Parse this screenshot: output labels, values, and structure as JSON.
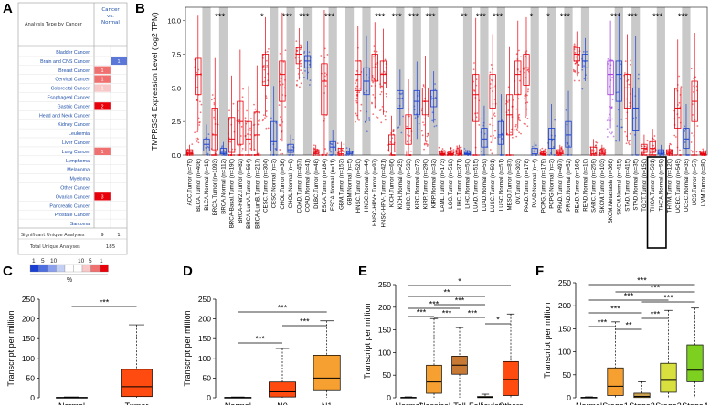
{
  "figure": {
    "panel_labels": [
      "A",
      "B",
      "C",
      "D",
      "E",
      "F"
    ]
  },
  "panelA": {
    "header_left": "Analysis Type by Cancer",
    "header_right_line1": "Cancer",
    "header_right_line2": "vs.",
    "header_right_line3": "Normal",
    "significant_label": "Significant Unique Analyses",
    "significant_values": [
      "9",
      "1"
    ],
    "total_label": "Total Unique Analyses",
    "total_value": "185",
    "legend_numbers": [
      "1",
      "5",
      "10",
      "10",
      "5",
      "1"
    ],
    "legend_unit": "%",
    "colors": {
      "up_strong": "#e8000b",
      "up_mid": "#f07070",
      "up_light": "#f8c8c8",
      "down": "#5b78d8",
      "link": "#1f4fa8"
    }
  },
  "chart_data": [
    {
      "panel": "A",
      "type": "table",
      "title": "Analysis Type by Cancer",
      "columns": [
        "Cancer vs. Normal (up)",
        "Cancer vs. Normal (down)"
      ],
      "rows": [
        {
          "cancer": "Bladder Cancer",
          "up": "",
          "down": ""
        },
        {
          "cancer": "Brain and CNS Cancer",
          "up": "",
          "down": "1"
        },
        {
          "cancer": "Breast Cancer",
          "up": "1",
          "down": ""
        },
        {
          "cancer": "Cervical Cancer",
          "up": "1",
          "down": ""
        },
        {
          "cancer": "Colorectal Cancer",
          "up": "1",
          "down": ""
        },
        {
          "cancer": "Esophageal Cancer",
          "up": "",
          "down": ""
        },
        {
          "cancer": "Gastric Cancer",
          "up": "2",
          "down": ""
        },
        {
          "cancer": "Head and Neck Cancer",
          "up": "",
          "down": ""
        },
        {
          "cancer": "Kidney Cancer",
          "up": "",
          "down": ""
        },
        {
          "cancer": "Leukemia",
          "up": "",
          "down": ""
        },
        {
          "cancer": "Liver Cancer",
          "up": "",
          "down": ""
        },
        {
          "cancer": "Lung Cancer",
          "up": "1",
          "down": ""
        },
        {
          "cancer": "Lymphoma",
          "up": "",
          "down": ""
        },
        {
          "cancer": "Melanoma",
          "up": "",
          "down": ""
        },
        {
          "cancer": "Myeloma",
          "up": "",
          "down": ""
        },
        {
          "cancer": "Other Cancer",
          "up": "",
          "down": ""
        },
        {
          "cancer": "Ovarian Cancer",
          "up": "3",
          "down": ""
        },
        {
          "cancer": "Pancreatic Cancer",
          "up": "",
          "down": ""
        },
        {
          "cancer": "Prostate Cancer",
          "up": "",
          "down": ""
        },
        {
          "cancer": "Sarcoma",
          "up": "",
          "down": ""
        }
      ],
      "cell_shade": {
        "Brain and CNS Cancer": "down",
        "Breast Cancer": "up_mid",
        "Cervical Cancer": "up_mid",
        "Colorectal Cancer": "up_light",
        "Gastric Cancer": "up_strong",
        "Lung Cancer": "up_mid",
        "Ovarian Cancer": "up_strong"
      }
    },
    {
      "panel": "B",
      "type": "box",
      "ylabel": "TMPRSS4 Expression Level (log2 TPM)",
      "ylim": [
        0,
        11
      ],
      "yticks": [
        "0.0",
        "2.5",
        "5.0",
        "7.5",
        "10.0"
      ],
      "categories": [
        "ACC.Tumor (n=79)",
        "BLCA.Tumor (n=408)",
        "BLCA.Normal (n=19)",
        "BRCA.Tumor (n=1093)",
        "BRCA.Normal (n=112)",
        "BRCA-Basal.Tumor (n=190)",
        "BRCA-Her2.Tumor (n=82)",
        "BRCA-LumA.Tumor (n=564)",
        "BRCA-LumB.Tumor (n=217)",
        "CESC.Tumor (n=304)",
        "CESC.Normal (n=3)",
        "CHOL.Tumor (n=36)",
        "CHOL.Normal (n=9)",
        "COAD.Tumor (n=457)",
        "COAD.Normal (n=41)",
        "DLBC.Tumor (n=48)",
        "ESCA.Tumor (n=184)",
        "ESCA.Normal (n=11)",
        "GBM.Tumor (n=153)",
        "GBM.Normal (n=5)",
        "HNSC.Tumor (n=520)",
        "HNSC.Normal (n=44)",
        "HNSC-HPV+.Tumor (n=97)",
        "HNSC-HPV-.Tumor (n=421)",
        "KICH.Tumor (n=66)",
        "KICH.Normal (n=25)",
        "KIRC.Tumor (n=533)",
        "KIRC.Normal (n=72)",
        "KIRP.Tumor (n=290)",
        "KIRP.Normal (n=32)",
        "LAML.Tumor (n=173)",
        "LGG.Tumor (n=516)",
        "LIHC.Tumor (n=371)",
        "LIHC.Normal (n=50)",
        "LUAD.Tumor (n=515)",
        "LUAD.Normal (n=59)",
        "LUSC.Tumor (n=501)",
        "LUSC.Normal (n=51)",
        "MESO.Tumor (n=87)",
        "OV.Tumor (n=303)",
        "PAAD.Tumor (n=178)",
        "PAAD.Normal (n=4)",
        "PCPG.Tumor (n=179)",
        "PCPG.Normal (n=3)",
        "PRAD.Tumor (n=497)",
        "PRAD.Normal (n=52)",
        "READ.Tumor (n=166)",
        "READ.Normal (n=10)",
        "SARC.Tumor (n=259)",
        "SKCM.Tumor (n=103)",
        "SKCM.Metastasis (n=368)",
        "SKCM.Normal (n=415)",
        "STAD.Tumor (n=415)",
        "STAD.Normal (n=35)",
        "TGCT.Tumor (n=150)",
        "THCA.Tumor (n=501)",
        "THCA.Normal (n=59)",
        "THYM.Tumor (n=120)",
        "UCEC.Tumor (n=545)",
        "UCEC.Normal (n=35)",
        "UCS.Tumor (n=57)",
        "UVM.Tumor (n=80)"
      ],
      "medians": [
        0.2,
        6.0,
        0.8,
        1.5,
        0.2,
        1.2,
        2.5,
        1.2,
        1.5,
        6.5,
        1.0,
        6.0,
        0.4,
        7.5,
        7.0,
        0.2,
        5.5,
        0.6,
        0.3,
        0.2,
        6.0,
        5.5,
        6.5,
        6.0,
        0.8,
        4.2,
        2.0,
        4.0,
        4.0,
        4.2,
        0.1,
        0.1,
        0.2,
        0.1,
        4.5,
        1.2,
        5.0,
        1.5,
        3.0,
        6.0,
        6.5,
        0.3,
        0.1,
        1.2,
        0.2,
        1.5,
        7.5,
        7.0,
        0.3,
        0.2,
        6.0,
        6.0,
        5.0,
        3.5,
        0.5,
        0.5,
        0.2,
        0.2,
        3.5,
        1.2,
        4.0,
        0.1
      ],
      "q1": [
        0.1,
        4.5,
        0.3,
        0.4,
        0.1,
        0.2,
        0.8,
        0.3,
        0.3,
        5.2,
        0.3,
        4.0,
        0.2,
        6.8,
        6.5,
        0.1,
        3.0,
        0.3,
        0.1,
        0.1,
        4.8,
        4.5,
        5.5,
        5.0,
        0.3,
        3.5,
        0.8,
        3.0,
        3.0,
        3.6,
        0.05,
        0.05,
        0.1,
        0.05,
        2.5,
        0.6,
        3.5,
        0.8,
        1.5,
        4.5,
        5.2,
        0.1,
        0.05,
        0.5,
        0.1,
        0.6,
        7.0,
        6.5,
        0.1,
        0.1,
        4.5,
        4.0,
        3.5,
        1.8,
        0.2,
        0.2,
        0.1,
        0.1,
        2.0,
        0.5,
        2.5,
        0.05
      ],
      "q3": [
        0.4,
        7.2,
        1.2,
        3.5,
        0.5,
        2.8,
        4.0,
        2.5,
        3.2,
        7.5,
        2.5,
        7.0,
        0.8,
        8.0,
        7.4,
        0.4,
        6.8,
        1.0,
        0.5,
        0.3,
        7.0,
        6.5,
        7.5,
        7.0,
        1.5,
        4.8,
        3.0,
        4.8,
        5.0,
        4.8,
        0.2,
        0.2,
        0.4,
        0.2,
        6.0,
        2.0,
        6.0,
        2.5,
        4.5,
        7.0,
        7.5,
        0.5,
        0.2,
        2.0,
        0.4,
        2.5,
        8.0,
        7.5,
        0.6,
        0.4,
        7.0,
        7.0,
        6.0,
        5.0,
        0.8,
        1.0,
        0.4,
        0.4,
        5.0,
        2.0,
        5.5,
        0.2
      ],
      "series_color": {
        "tumor": "#e8000b",
        "normal": "#1a3fd1",
        "metastasis": "#9b30d9"
      },
      "significance_labels": [
        {
          "cat": "BRCA.Normal (n=112)",
          "text": "***"
        },
        {
          "cat": "CESC.Tumor (n=304)",
          "text": "*"
        },
        {
          "cat": "CHOL.Normal (n=9)",
          "text": "***"
        },
        {
          "cat": "COAD.Normal (n=41)",
          "text": "***"
        },
        {
          "cat": "ESCA.Normal (n=11)",
          "text": "***"
        },
        {
          "cat": "HNSC-HPV-.Tumor (n=421)",
          "text": "***"
        },
        {
          "cat": "KICH.Normal (n=25)",
          "text": "***"
        },
        {
          "cat": "KIRC.Normal (n=72)",
          "text": "***"
        },
        {
          "cat": "KIRP.Normal (n=32)",
          "text": "***"
        },
        {
          "cat": "LIHC.Normal (n=50)",
          "text": "**"
        },
        {
          "cat": "LUAD.Normal (n=59)",
          "text": "***"
        },
        {
          "cat": "LUSC.Normal (n=51)",
          "text": "***"
        },
        {
          "cat": "PAAD.Normal (n=4)",
          "text": "*"
        },
        {
          "cat": "PCPG.Normal (n=3)",
          "text": "*"
        },
        {
          "cat": "PRAD.Normal (n=52)",
          "text": "***"
        },
        {
          "cat": "SKCM.Normal (n=415)",
          "text": "***"
        },
        {
          "cat": "STAD.Normal (n=35)",
          "text": "***"
        },
        {
          "cat": "THCA.Normal (n=59)",
          "text": "***"
        },
        {
          "cat": "UCEC.Normal (n=35)",
          "text": "***"
        }
      ],
      "highlighted_categories": [
        "THCA.Tumor (n=501)",
        "THCA.Normal (n=59)"
      ]
    },
    {
      "panel": "C",
      "type": "box",
      "ylabel": "Transcript per million",
      "ylim": [
        0,
        250
      ],
      "yticks": [
        "0",
        "50",
        "100",
        "150",
        "200",
        "250"
      ],
      "categories": [
        "Normal",
        "Tumor"
      ],
      "medians": [
        0.5,
        28
      ],
      "q1": [
        0.2,
        3
      ],
      "q3": [
        1,
        72
      ],
      "whisker_high": [
        2,
        185
      ],
      "colors": [
        "#ffffff",
        "#ff4b10"
      ],
      "comparisons": [
        {
          "from": "Normal",
          "to": "Tumor",
          "text": "***"
        }
      ]
    },
    {
      "panel": "D",
      "type": "box",
      "ylabel": "Transcript per million",
      "ylim": [
        0,
        250
      ],
      "yticks": [
        "0",
        "50",
        "100",
        "150",
        "200",
        "250"
      ],
      "categories": [
        "Normal",
        "N0",
        "N1"
      ],
      "medians": [
        0.5,
        15,
        50
      ],
      "q1": [
        0.2,
        2,
        18
      ],
      "q3": [
        1,
        40,
        108
      ],
      "whisker_high": [
        2,
        125,
        195
      ],
      "colors": [
        "#ffffff",
        "#ff4b10",
        "#f5a030"
      ],
      "comparisons": [
        {
          "from": "Normal",
          "to": "N0",
          "text": "***"
        },
        {
          "from": "Normal",
          "to": "N1",
          "text": "***"
        },
        {
          "from": "N0",
          "to": "N1",
          "text": "***"
        }
      ]
    },
    {
      "panel": "E",
      "type": "box",
      "ylabel": "Transcript per million",
      "ylim": [
        0,
        250
      ],
      "yticks": [
        "0",
        "50",
        "100",
        "150",
        "200",
        "250"
      ],
      "categories": [
        "Normal",
        "Classical",
        "Tall",
        "Follicular",
        "Others"
      ],
      "medians": [
        0.5,
        35,
        72,
        1,
        40
      ],
      "q1": [
        0.2,
        10,
        52,
        0.3,
        5
      ],
      "q3": [
        1,
        72,
        92,
        3,
        80
      ],
      "whisker_high": [
        2,
        175,
        155,
        8,
        185
      ],
      "colors": [
        "#ffffff",
        "#f5a030",
        "#c87a35",
        "#e8c070",
        "#ff4b10"
      ],
      "comparisons": [
        {
          "from": "Normal",
          "to": "Others",
          "text": "*"
        },
        {
          "from": "Normal",
          "to": "Follicular",
          "text": "**"
        },
        {
          "from": "Classical",
          "to": "Follicular",
          "text": "***"
        },
        {
          "from": "Normal",
          "to": "Tall",
          "text": "***"
        },
        {
          "from": "Tall",
          "to": "Follicular",
          "text": "***"
        },
        {
          "from": "Normal",
          "to": "Classical",
          "text": "***"
        },
        {
          "from": "Classical",
          "to": "Tall",
          "text": "***"
        },
        {
          "from": "Follicular",
          "to": "Others",
          "text": "*"
        }
      ]
    },
    {
      "panel": "F",
      "type": "box",
      "ylabel": "Transcript per million",
      "ylim": [
        0,
        250
      ],
      "yticks": [
        "0",
        "50",
        "100",
        "150",
        "200",
        "250"
      ],
      "categories": [
        "Normal",
        "Stage1",
        "Stage2",
        "Stage3",
        "Stage4"
      ],
      "medians": [
        0.5,
        25,
        3,
        38,
        60
      ],
      "q1": [
        0.2,
        5,
        0.5,
        12,
        35
      ],
      "q3": [
        1,
        65,
        10,
        75,
        115
      ],
      "whisker_high": [
        2,
        165,
        35,
        190,
        195
      ],
      "colors": [
        "#ffffff",
        "#f5a030",
        "#c8a050",
        "#d8e040",
        "#7ed020"
      ],
      "comparisons": [
        {
          "from": "Normal",
          "to": "Stage4",
          "text": "***"
        },
        {
          "from": "Stage1",
          "to": "Stage4",
          "text": "***"
        },
        {
          "from": "Normal",
          "to": "Stage3",
          "text": "***"
        },
        {
          "from": "Stage2",
          "to": "Stage4",
          "text": "***"
        },
        {
          "from": "Normal",
          "to": "Stage2",
          "text": "***"
        },
        {
          "from": "Stage2",
          "to": "Stage3",
          "text": "***"
        },
        {
          "from": "Normal",
          "to": "Stage1",
          "text": "***"
        },
        {
          "from": "Stage1",
          "to": "Stage2",
          "text": "**"
        }
      ]
    }
  ]
}
